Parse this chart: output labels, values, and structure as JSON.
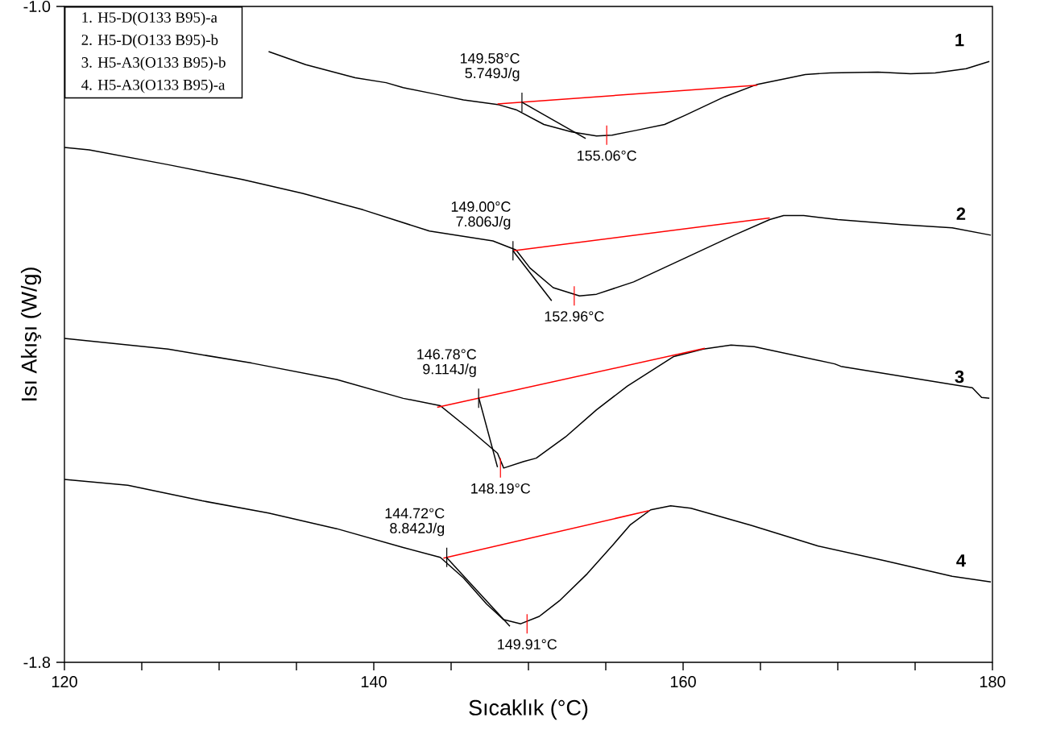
{
  "chart_data": {
    "type": "line",
    "xlabel": "Sıcaklık (°C)",
    "ylabel": "Isı Akışı (W/g)",
    "xlim": [
      120,
      180
    ],
    "ylim": [
      -1.8,
      -1.0
    ],
    "xticks": [
      120,
      {
        "value": 125,
        "label": null
      },
      {
        "value": 130,
        "label": null
      },
      {
        "value": 135,
        "label": null
      },
      140,
      {
        "value": 145,
        "label": null
      },
      {
        "value": 150,
        "label": null
      },
      {
        "value": 155,
        "label": null
      },
      160,
      {
        "value": 165,
        "label": null
      },
      {
        "value": 170,
        "label": null
      },
      {
        "value": 175,
        "label": null
      },
      180
    ],
    "yticks": [
      {
        "value": -1.8,
        "label": "-1.8"
      },
      {
        "value": -1.0,
        "label": "-1.0"
      }
    ],
    "series": [
      {
        "name": "1",
        "color": "#000000",
        "x": [
          133.2,
          135.6,
          137.2,
          138.8,
          140.8,
          141.9,
          144.0,
          145.8,
          148.1,
          149.2,
          151.0,
          152.8,
          154.4,
          155.4,
          157.0,
          158.8,
          160.1,
          162.7,
          164.8,
          166.9,
          167.9,
          169.5,
          172.6,
          174.7,
          176.3,
          178.3,
          179.8
        ],
        "values": [
          -1.055,
          -1.071,
          -1.079,
          -1.087,
          -1.093,
          -1.099,
          -1.107,
          -1.114,
          -1.12,
          -1.126,
          -1.144,
          -1.153,
          -1.158,
          -1.157,
          -1.151,
          -1.144,
          -1.133,
          -1.11,
          -1.095,
          -1.087,
          -1.083,
          -1.081,
          -1.08,
          -1.082,
          -1.081,
          -1.076,
          -1.067
        ]
      },
      {
        "name": "2",
        "color": "#000000",
        "x": [
          120.0,
          121.6,
          126.7,
          131.5,
          135.4,
          139.3,
          143.6,
          147.7,
          149.2,
          150.1,
          151.6,
          153.3,
          154.4,
          156.8,
          160.0,
          163.3,
          165.6,
          166.5,
          167.8,
          170.0,
          174.1,
          177.4,
          179.9
        ],
        "values": [
          -1.172,
          -1.175,
          -1.193,
          -1.211,
          -1.228,
          -1.248,
          -1.274,
          -1.286,
          -1.297,
          -1.319,
          -1.343,
          -1.353,
          -1.351,
          -1.336,
          -1.308,
          -1.279,
          -1.26,
          -1.255,
          -1.255,
          -1.26,
          -1.266,
          -1.27,
          -1.279
        ]
      },
      {
        "name": "3",
        "color": "#000000",
        "x": [
          120.0,
          126.7,
          132.1,
          137.6,
          141.9,
          144.3,
          146.2,
          148.0,
          148.4,
          149.7,
          150.5,
          152.4,
          154.4,
          156.4,
          159.4,
          161.3,
          163.1,
          164.6,
          169.8,
          170.2,
          178.7,
          179.3,
          179.8
        ],
        "values": [
          -1.405,
          -1.418,
          -1.435,
          -1.455,
          -1.478,
          -1.487,
          -1.516,
          -1.545,
          -1.563,
          -1.555,
          -1.551,
          -1.525,
          -1.492,
          -1.463,
          -1.427,
          -1.418,
          -1.413,
          -1.415,
          -1.436,
          -1.439,
          -1.465,
          -1.477,
          -1.478
        ]
      },
      {
        "name": "4",
        "color": "#000000",
        "x": [
          120.0,
          124.1,
          128.9,
          133.2,
          137.6,
          141.9,
          144.3,
          145.8,
          147.3,
          148.4,
          149.5,
          150.7,
          152.0,
          153.8,
          155.5,
          156.6,
          157.9,
          159.2,
          160.5,
          164.4,
          168.7,
          173.0,
          177.4,
          179.9
        ],
        "values": [
          -1.577,
          -1.584,
          -1.603,
          -1.618,
          -1.637,
          -1.66,
          -1.672,
          -1.697,
          -1.729,
          -1.748,
          -1.753,
          -1.744,
          -1.725,
          -1.692,
          -1.656,
          -1.632,
          -1.614,
          -1.609,
          -1.612,
          -1.633,
          -1.658,
          -1.676,
          -1.695,
          -1.702
        ]
      },
      {
        "color": "#ff0000",
        "x": [
          148.0,
          164.8
        ],
        "values": [
          -1.119,
          -1.096
        ]
      },
      {
        "color": "#000000",
        "x": [
          149.6,
          153.7
        ],
        "values": [
          -1.117,
          -1.161
        ]
      },
      {
        "color": "#ff0000",
        "x": [
          149.0,
          165.6
        ],
        "values": [
          -1.298,
          -1.258
        ]
      },
      {
        "color": "#000000",
        "x": [
          149.0,
          151.5
        ],
        "values": [
          -1.298,
          -1.359
        ]
      },
      {
        "color": "#ff0000",
        "x": [
          144.1,
          161.4
        ],
        "values": [
          -1.489,
          -1.417
        ]
      },
      {
        "color": "#000000",
        "x": [
          146.8,
          148.0
        ],
        "values": [
          -1.478,
          -1.562
        ]
      },
      {
        "color": "#ff0000",
        "x": [
          144.5,
          157.8
        ],
        "values": [
          -1.673,
          -1.615
        ]
      },
      {
        "color": "#000000",
        "x": [
          144.7,
          148.8
        ],
        "values": [
          -1.672,
          -1.756
        ]
      }
    ],
    "annotations": [
      "1.  H5-D(O133 B95)-a",
      "2.  H5-D(O133 B95)-b",
      "3.  H5-A3(O133 B95)-b",
      "4.  H5-A3(O133 B95)-a",
      {
        "text": "149.58°C",
        "x": 149.58,
        "y": -1.117
      },
      {
        "text": "5.749J/g",
        "x": 149.58,
        "y": -1.117
      },
      {
        "text": "155.06°C",
        "x": 155.06,
        "y": -1.157
      },
      {
        "text": "149.00°C",
        "x": 149.0,
        "y": -1.298
      },
      {
        "text": "7.806J/g",
        "x": 149.0,
        "y": -1.298
      },
      {
        "text": "152.96°C",
        "x": 152.96,
        "y": -1.353
      },
      {
        "text": "146.78°C",
        "x": 146.78,
        "y": -1.478
      },
      {
        "text": "9.114J/g",
        "x": 146.78,
        "y": -1.478
      },
      {
        "text": "148.19°C",
        "x": 148.19,
        "y": -1.563
      },
      {
        "text": "144.72°C",
        "x": 144.72,
        "y": -1.672
      },
      {
        "text": "8.842J/g",
        "x": 144.72,
        "y": -1.672
      },
      {
        "text": "149.91°C",
        "x": 149.91,
        "y": -1.753
      }
    ]
  }
}
